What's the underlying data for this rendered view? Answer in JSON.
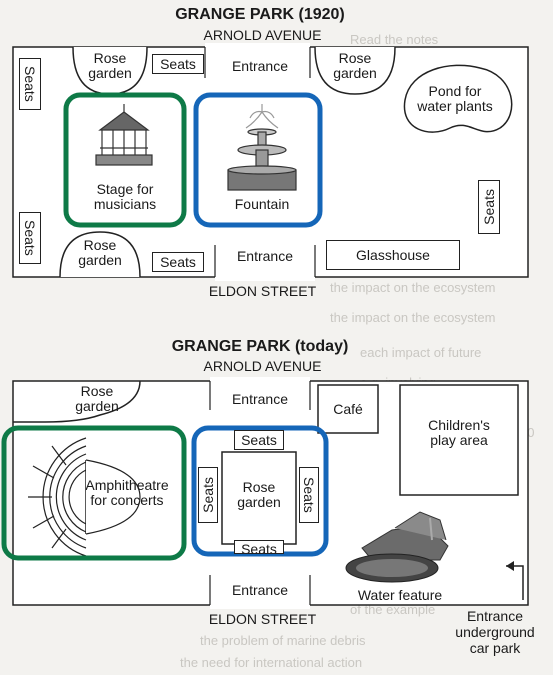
{
  "top_map": {
    "title": "GRANGE PARK (1920)",
    "north_street": "ARNOLD AVENUE",
    "south_street": "ELDON STREET",
    "rose_garden_1": "Rose\ngarden",
    "rose_garden_2": "Rose\ngarden",
    "rose_garden_3": "Rose\ngarden",
    "seats_top": "Seats",
    "seats_bottom": "Seats",
    "seats_left_1": "Seats",
    "seats_left_2": "Seats",
    "seats_right": "Seats",
    "entrance_north": "Entrance",
    "entrance_south": "Entrance",
    "pond": "Pond for\nwater plants",
    "stage": "Stage for\nmusicians",
    "fountain": "Fountain",
    "glasshouse": "Glasshouse"
  },
  "bottom_map": {
    "title": "GRANGE PARK (today)",
    "north_street": "ARNOLD AVENUE",
    "south_street": "ELDON STREET",
    "rose_garden_corner": "Rose\ngarden",
    "entrance_north": "Entrance",
    "entrance_south": "Entrance",
    "cafe": "Café",
    "play_area": "Children's\nplay area",
    "amphitheatre": "Amphitheatre\nfor concerts",
    "seats_top": "Seats",
    "seats_bottom": "Seats",
    "seats_left": "Seats",
    "seats_right": "Seats",
    "rose_garden_center": "Rose\ngarden",
    "water_feature": "Water feature",
    "car_park_entrance": "Entrance\nunderground\ncar park"
  },
  "colors": {
    "highlight_green": "#0e7a47",
    "highlight_blue": "#1566b8"
  }
}
